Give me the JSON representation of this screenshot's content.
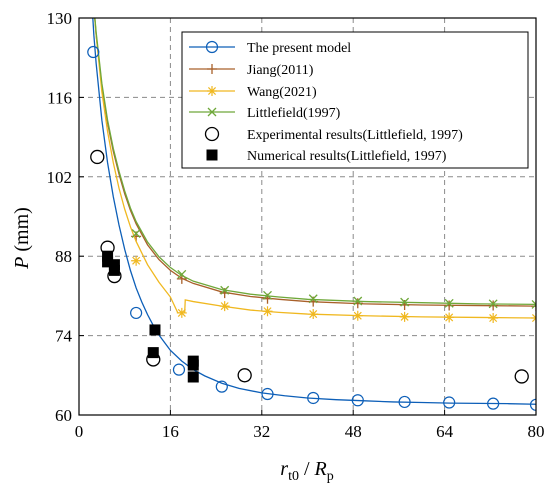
{
  "chart_data": {
    "type": "line",
    "title": "",
    "xlabel": {
      "main": "r",
      "sub1": "t0",
      "slash": " / ",
      "main2": "R",
      "sub2": "p"
    },
    "ylabel": {
      "main": "P",
      "unit": " (mm)"
    },
    "xlim": [
      0,
      80
    ],
    "ylim": [
      60,
      130
    ],
    "xticks": [
      0,
      16,
      32,
      48,
      64,
      80
    ],
    "yticks": [
      60,
      74,
      88,
      102,
      116,
      130
    ],
    "grid": true,
    "legend_position": "top-right",
    "series": [
      {
        "name": "The present model",
        "kind": "line-marker",
        "color": "#0d5fb8",
        "marker": "circle",
        "curve": [
          [
            2.3,
            132
          ],
          [
            2.6,
            127
          ],
          [
            3,
            122
          ],
          [
            3.5,
            117
          ],
          [
            4,
            112
          ],
          [
            5,
            104.5
          ],
          [
            6,
            98.5
          ],
          [
            7,
            93.5
          ],
          [
            8,
            89.2
          ],
          [
            9,
            85.5
          ],
          [
            10,
            82.4
          ],
          [
            11,
            79.9
          ],
          [
            12,
            77.7
          ],
          [
            13,
            75.8
          ],
          [
            14,
            74.1
          ],
          [
            16,
            71.4
          ],
          [
            18,
            69.5
          ],
          [
            20,
            68.0
          ],
          [
            22,
            66.9
          ],
          [
            25,
            65.6
          ],
          [
            28,
            64.7
          ],
          [
            32,
            63.9
          ],
          [
            36,
            63.4
          ],
          [
            40,
            63.0
          ],
          [
            45,
            62.7
          ],
          [
            50,
            62.5
          ],
          [
            55,
            62.3
          ],
          [
            60,
            62.2
          ],
          [
            65,
            62.1
          ],
          [
            70,
            62.05
          ],
          [
            75,
            62.0
          ],
          [
            80,
            61.9
          ]
        ],
        "markers": [
          [
            2.5,
            124
          ],
          [
            10,
            78
          ],
          [
            17.5,
            68
          ],
          [
            25,
            65
          ],
          [
            33,
            63.7
          ],
          [
            41,
            63
          ],
          [
            48.8,
            62.6
          ],
          [
            57,
            62.3
          ],
          [
            64.8,
            62.2
          ],
          [
            72.5,
            62
          ],
          [
            80,
            61.8
          ]
        ]
      },
      {
        "name": "Jiang(2011)",
        "kind": "line-marker",
        "color": "#a9602a",
        "marker": "plus",
        "curve": [
          [
            2.6,
            132
          ],
          [
            3,
            127
          ],
          [
            4,
            118
          ],
          [
            5,
            111.5
          ],
          [
            6,
            106.5
          ],
          [
            7,
            102.5
          ],
          [
            8,
            99
          ],
          [
            9,
            96.1
          ],
          [
            10,
            93.7
          ],
          [
            12,
            90.0
          ],
          [
            14,
            87.4
          ],
          [
            16,
            85.5
          ],
          [
            18,
            84.1
          ],
          [
            20,
            83.2
          ],
          [
            25,
            81.7
          ],
          [
            30,
            80.9
          ],
          [
            35,
            80.4
          ],
          [
            40,
            80.0
          ],
          [
            50,
            79.6
          ],
          [
            60,
            79.4
          ],
          [
            70,
            79.3
          ],
          [
            80,
            79.2
          ]
        ],
        "markers": [
          [
            10,
            91.5
          ],
          [
            18,
            84
          ],
          [
            25.5,
            81.5
          ],
          [
            33,
            80.5
          ],
          [
            41,
            80
          ],
          [
            48.8,
            79.7
          ],
          [
            57,
            79.4
          ],
          [
            64.8,
            79.3
          ],
          [
            72.5,
            79.3
          ],
          [
            80,
            79.2
          ]
        ]
      },
      {
        "name": "Wang(2021)",
        "kind": "line-marker",
        "color": "#f0b820",
        "marker": "star",
        "curve": [
          [
            2.6,
            132
          ],
          [
            3,
            127
          ],
          [
            4,
            117
          ],
          [
            5,
            110
          ],
          [
            6,
            104.5
          ],
          [
            7,
            100
          ],
          [
            8,
            96.3
          ],
          [
            9,
            93.2
          ],
          [
            10,
            90.6
          ],
          [
            12,
            86.5
          ],
          [
            14,
            83.4
          ],
          [
            16,
            80.8
          ],
          [
            17.3,
            78.0
          ],
          [
            18.5,
            78.0
          ],
          [
            18.6,
            80.3
          ],
          [
            20,
            80.0
          ],
          [
            25,
            79.2
          ],
          [
            30,
            78.5
          ],
          [
            35,
            78.1
          ],
          [
            40,
            77.8
          ],
          [
            50,
            77.5
          ],
          [
            60,
            77.3
          ],
          [
            70,
            77.2
          ],
          [
            80,
            77.1
          ]
        ],
        "markers": [
          [
            10,
            87.2
          ],
          [
            18,
            78
          ],
          [
            25.5,
            79.2
          ],
          [
            33,
            78.3
          ],
          [
            41,
            77.8
          ],
          [
            48.8,
            77.5
          ],
          [
            57,
            77.3
          ],
          [
            64.8,
            77.2
          ],
          [
            72.5,
            77.1
          ],
          [
            80,
            77.1
          ]
        ]
      },
      {
        "name": "Littlefield(1997)",
        "kind": "line-marker",
        "color": "#6fa83a",
        "marker": "x",
        "curve": [
          [
            2.6,
            132
          ],
          [
            3,
            127.5
          ],
          [
            4,
            118.5
          ],
          [
            5,
            112
          ],
          [
            6,
            107
          ],
          [
            7,
            103
          ],
          [
            8,
            99.5
          ],
          [
            9,
            96.5
          ],
          [
            10,
            94.1
          ],
          [
            12,
            90.5
          ],
          [
            14,
            87.9
          ],
          [
            16,
            86.0
          ],
          [
            18,
            84.6
          ],
          [
            20,
            83.6
          ],
          [
            25,
            82.1
          ],
          [
            30,
            81.3
          ],
          [
            35,
            80.8
          ],
          [
            40,
            80.4
          ],
          [
            50,
            80.0
          ],
          [
            60,
            79.8
          ],
          [
            70,
            79.6
          ],
          [
            80,
            79.5
          ]
        ],
        "markers": [
          [
            10,
            92
          ],
          [
            18,
            84.8
          ],
          [
            25.5,
            82
          ],
          [
            33,
            81.1
          ],
          [
            41,
            80.5
          ],
          [
            48.8,
            80.1
          ],
          [
            57,
            79.9
          ],
          [
            64.8,
            79.7
          ],
          [
            72.5,
            79.6
          ],
          [
            80,
            79.5
          ]
        ]
      },
      {
        "name": "Experimental results(Littlefield, 1997)",
        "kind": "scatter",
        "color": "#000000",
        "marker": "open-circle",
        "points": [
          [
            3.2,
            105.5
          ],
          [
            5,
            89.5
          ],
          [
            6.2,
            84.5
          ],
          [
            13,
            69.8
          ],
          [
            29,
            67
          ],
          [
            77.5,
            66.8
          ]
        ]
      },
      {
        "name": "Numerical results(Littlefield, 1997)",
        "kind": "scatter",
        "color": "#000000",
        "marker": "filled-square",
        "points": [
          [
            5,
            88
          ],
          [
            5,
            87
          ],
          [
            6.2,
            86.5
          ],
          [
            6.2,
            85.5
          ],
          [
            13.3,
            75
          ],
          [
            13,
            71
          ],
          [
            20,
            69.5
          ],
          [
            20,
            68.8
          ],
          [
            20,
            66.7
          ]
        ]
      }
    ]
  }
}
